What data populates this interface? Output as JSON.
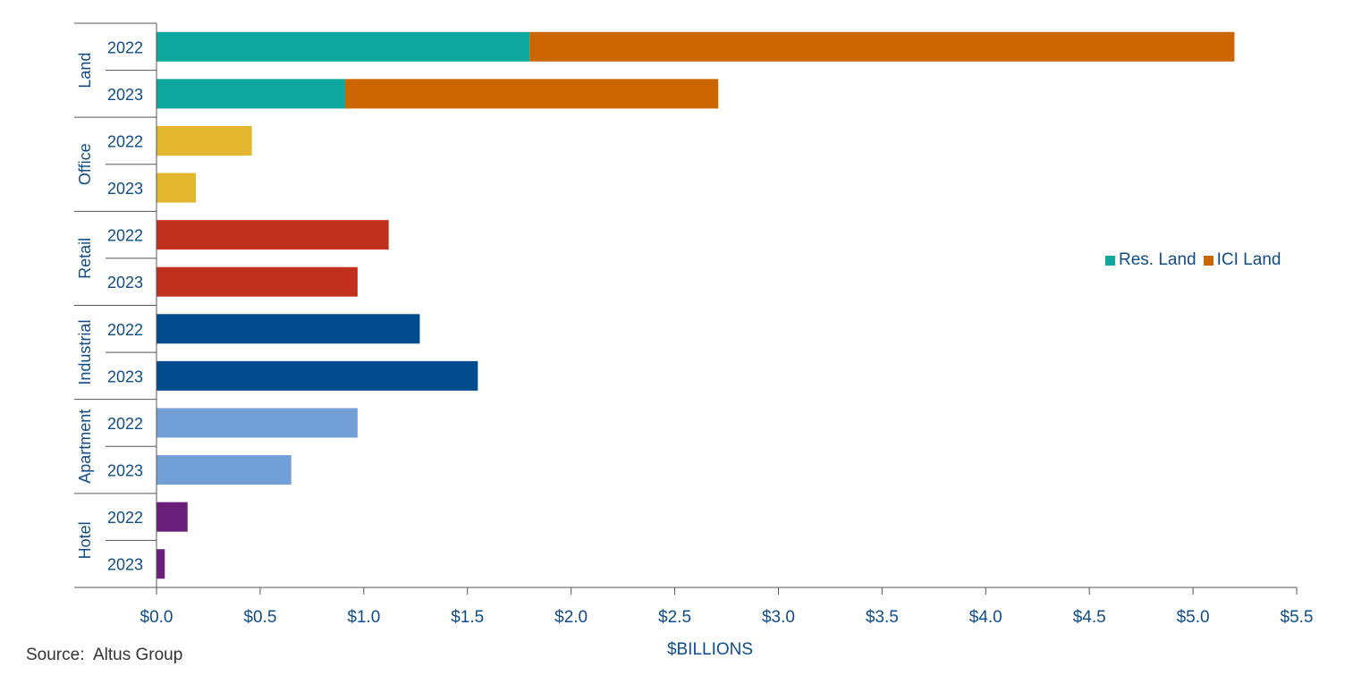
{
  "chart_data": {
    "type": "bar",
    "orientation": "horizontal",
    "stacked": true,
    "groups": [
      {
        "name": "Land",
        "rows": [
          {
            "year": "2022",
            "segments": [
              {
                "series": "Res. Land",
                "value": 1.8
              },
              {
                "series": "ICI Land",
                "value": 3.4
              }
            ]
          },
          {
            "year": "2023",
            "segments": [
              {
                "series": "Res. Land",
                "value": 0.91
              },
              {
                "series": "ICI Land",
                "value": 1.8
              }
            ]
          }
        ]
      },
      {
        "name": "Office",
        "rows": [
          {
            "year": "2022",
            "segments": [
              {
                "series": "Office",
                "value": 0.46
              }
            ]
          },
          {
            "year": "2023",
            "segments": [
              {
                "series": "Office",
                "value": 0.19
              }
            ]
          }
        ]
      },
      {
        "name": "Retail",
        "rows": [
          {
            "year": "2022",
            "segments": [
              {
                "series": "Retail",
                "value": 1.12
              }
            ]
          },
          {
            "year": "2023",
            "segments": [
              {
                "series": "Retail",
                "value": 0.97
              }
            ]
          }
        ]
      },
      {
        "name": "Industrial",
        "rows": [
          {
            "year": "2022",
            "segments": [
              {
                "series": "Industrial",
                "value": 1.27
              }
            ]
          },
          {
            "year": "2023",
            "segments": [
              {
                "series": "Industrial",
                "value": 1.55
              }
            ]
          }
        ]
      },
      {
        "name": "Apartment",
        "rows": [
          {
            "year": "2022",
            "segments": [
              {
                "series": "Apartment",
                "value": 0.97
              }
            ]
          },
          {
            "year": "2023",
            "segments": [
              {
                "series": "Apartment",
                "value": 0.65
              }
            ]
          }
        ]
      },
      {
        "name": "Hotel",
        "rows": [
          {
            "year": "2022",
            "segments": [
              {
                "series": "Hotel",
                "value": 0.15
              }
            ]
          },
          {
            "year": "2023",
            "segments": [
              {
                "series": "Hotel",
                "value": 0.04
              }
            ]
          }
        ]
      }
    ],
    "colors": {
      "Res. Land": "#0ea89e",
      "ICI Land": "#cc6600",
      "Office": "#e2b72e",
      "Retail": "#c0301c",
      "Industrial": "#004b8d",
      "Apartment": "#72a0d6",
      "Hotel": "#6a1f7a"
    },
    "xlim": [
      0,
      5.5
    ],
    "xticks": [
      0,
      0.5,
      1,
      1.5,
      2,
      2.5,
      3,
      3.5,
      4,
      4.5,
      5,
      5.5
    ],
    "xtick_labels": [
      "$0.0",
      "$0.5",
      "$1.0",
      "$1.5",
      "$2.0",
      "$2.5",
      "$3.0",
      "$3.5",
      "$4.0",
      "$4.5",
      "$5.0",
      "$5.5"
    ],
    "xlabel": "$BILLIONS",
    "legend": [
      {
        "label": "Res. Land",
        "color": "#0ea89e"
      },
      {
        "label": "ICI Land",
        "color": "#cc6600"
      }
    ],
    "legend_position": "right",
    "grid": false
  },
  "source": "Source:  Altus Group",
  "text_color": "#0e4c8c",
  "axis_color": "#555555"
}
